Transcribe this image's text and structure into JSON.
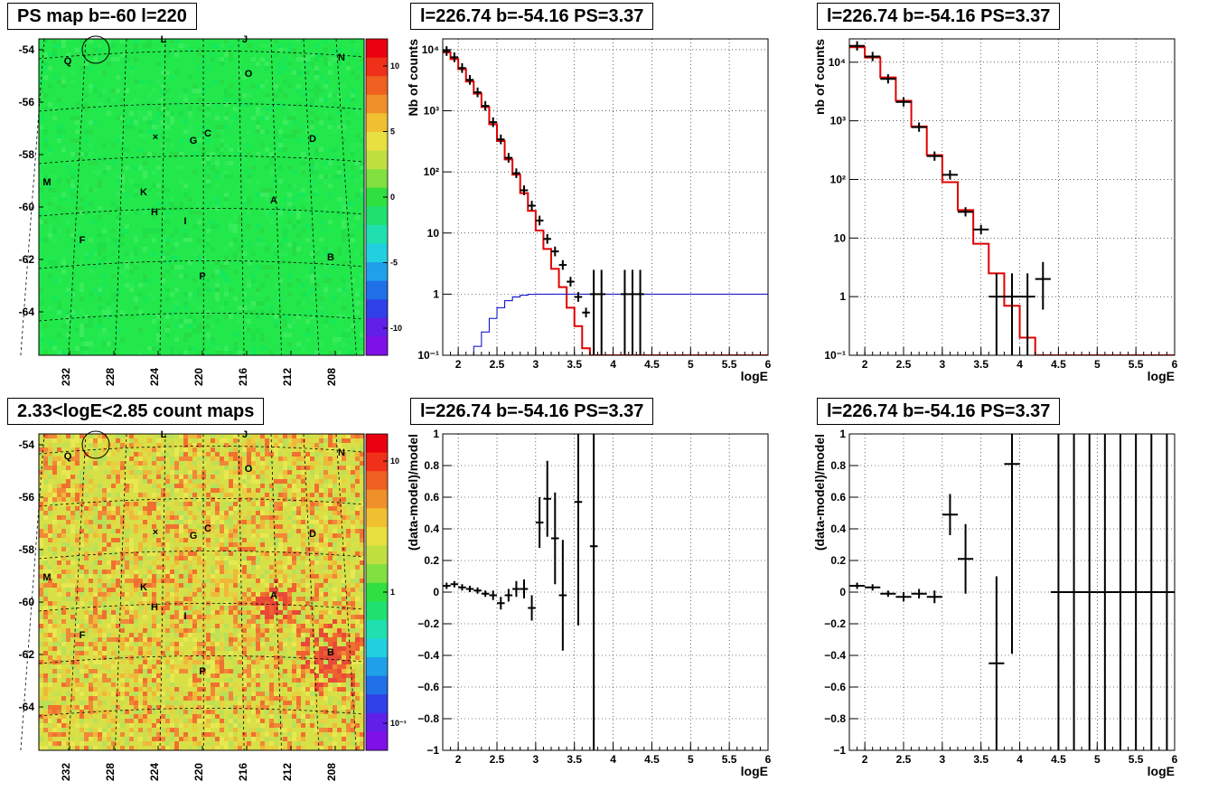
{
  "titles": {
    "map_top": "PS map b=-60 l=220",
    "map_bottom": "2.33<logE<2.85 count maps",
    "spec1": "l=226.74 b=-54.16 PS=3.37",
    "spec2": "l=226.74 b=-54.16 PS=3.37",
    "res1": "l=226.74 b=-54.16 PS=3.37",
    "res2": "l=226.74 b=-54.16 PS=3.37"
  },
  "maps": {
    "lat_ticks": [
      "-54",
      "-56",
      "-58",
      "-60",
      "-62",
      "-64"
    ],
    "lon_ticks": [
      "232",
      "228",
      "224",
      "220",
      "216",
      "212",
      "208"
    ],
    "sources": [
      "L",
      "J",
      "Q",
      "N",
      "O",
      "C",
      "G",
      "D",
      "M",
      "K",
      "A",
      "H",
      "I",
      "F",
      "B",
      "P"
    ],
    "top_palette_ticks": [
      "10",
      "5",
      "0",
      "-5",
      "-10"
    ],
    "bottom_palette_ticks": [
      "10",
      "1",
      "10⁻¹"
    ],
    "colors": {
      "top_background": "#22e84c",
      "bottom_background": "#d8e048",
      "hotspot": "#e84838"
    }
  },
  "chart_data": [
    {
      "type": "line",
      "title": "l=226.74 b=-54.16 PS=3.37",
      "xlabel": "logE",
      "ylabel": "Nb of counts",
      "log_y": true,
      "xlim": [
        1.8,
        6
      ],
      "ylim": [
        0.1,
        15000
      ],
      "x_ticks": [
        "2",
        "2.5",
        "3",
        "3.5",
        "4",
        "4.5",
        "5",
        "5.5",
        "6"
      ],
      "y_ticks": [
        "10⁻¹",
        "1",
        "10",
        "10²",
        "10³",
        "10⁴"
      ],
      "grid": true,
      "series": [
        {
          "style": "step",
          "color": "#e00000",
          "bins": [
            1.8,
            1.9,
            2.0,
            2.1,
            2.2,
            2.3,
            2.4,
            2.5,
            2.6,
            2.7,
            2.8,
            2.9,
            3.0,
            3.1,
            3.2,
            3.3,
            3.4,
            3.5,
            3.6,
            3.7,
            3.8,
            3.9,
            4.0,
            6.0
          ],
          "values": [
            9000,
            7000,
            4800,
            3000,
            1900,
            1150,
            600,
            320,
            160,
            90,
            45,
            23,
            11,
            5.5,
            2.6,
            1.3,
            0.6,
            0.3,
            0.13,
            0.1,
            0.1,
            0.1,
            0.1
          ]
        },
        {
          "style": "step",
          "color": "#0000c8",
          "bins": [
            2.1,
            2.2,
            2.3,
            2.4,
            2.5,
            2.6,
            2.7,
            2.8,
            2.9,
            3.0,
            3.1,
            6.0
          ],
          "values": [
            0.1,
            0.14,
            0.24,
            0.4,
            0.6,
            0.78,
            0.9,
            0.96,
            0.99,
            1.0,
            1.0
          ]
        },
        {
          "style": "errorbar",
          "color": "#000000",
          "x": [
            1.85,
            1.95,
            2.05,
            2.15,
            2.25,
            2.35,
            2.45,
            2.55,
            2.65,
            2.75,
            2.85,
            2.95,
            3.05,
            3.15,
            3.25,
            3.35,
            3.45,
            3.55,
            3.65,
            3.75,
            3.85,
            4.15,
            4.25,
            4.35
          ],
          "values": [
            9500,
            7500,
            5000,
            3200,
            2000,
            1200,
            650,
            340,
            170,
            95,
            50,
            28,
            16,
            8,
            5,
            3,
            1.6,
            0.9,
            0.5,
            1,
            1,
            1,
            1,
            1
          ],
          "err_low": [
            0,
            0,
            0,
            0,
            0,
            0,
            0,
            0,
            0,
            0,
            0,
            0,
            0,
            0,
            0,
            0,
            0,
            0,
            0,
            0.9,
            0.9,
            0.9,
            0.9,
            0.9
          ],
          "err_high": [
            0,
            0,
            0,
            0,
            0,
            0,
            0,
            0,
            0,
            0,
            0,
            0,
            0,
            0,
            0,
            0,
            0,
            0,
            0,
            1.5,
            1.5,
            1.5,
            1.5,
            1.5
          ],
          "x_err": 0.05
        }
      ]
    },
    {
      "type": "line",
      "title": "l=226.74 b=-54.16 PS=3.37",
      "xlabel": "logE",
      "ylabel": "nb of counts",
      "log_y": true,
      "xlim": [
        1.8,
        6
      ],
      "ylim": [
        0.1,
        25000
      ],
      "x_ticks": [
        "2",
        "2.5",
        "3",
        "3.5",
        "4",
        "4.5",
        "5",
        "5.5",
        "6"
      ],
      "y_ticks": [
        "10⁻¹",
        "1",
        "10",
        "10²",
        "10³",
        "10⁴"
      ],
      "grid": true,
      "series": [
        {
          "style": "step",
          "color": "#e00000",
          "bins": [
            1.8,
            2.0,
            2.2,
            2.4,
            2.6,
            2.8,
            3.0,
            3.2,
            3.4,
            3.6,
            3.8,
            4.0,
            4.2,
            6.0
          ],
          "values": [
            18000,
            12000,
            5500,
            2200,
            800,
            260,
            90,
            30,
            8,
            2.5,
            0.7,
            0.2,
            0.1
          ]
        },
        {
          "style": "errorbar",
          "color": "#000000",
          "x": [
            1.9,
            2.1,
            2.3,
            2.5,
            2.7,
            2.9,
            3.1,
            3.3,
            3.5,
            3.7,
            3.9,
            4.1,
            4.3
          ],
          "values": [
            19000,
            12500,
            5200,
            2100,
            780,
            250,
            120,
            28,
            14,
            1,
            1,
            1,
            2
          ],
          "err_low": [
            0,
            0,
            0,
            0,
            0,
            0,
            0,
            0,
            0,
            0.9,
            0.9,
            0.9,
            1.4
          ],
          "err_high": [
            0,
            0,
            0,
            0,
            0,
            0,
            0,
            0,
            0,
            1.5,
            1.5,
            1.5,
            1.9
          ],
          "x_err": 0.1
        }
      ]
    },
    {
      "type": "scatter",
      "title": "l=226.74 b=-54.16 PS=3.37",
      "xlabel": "logE",
      "ylabel": "(data-model)/model",
      "xlim": [
        1.8,
        6
      ],
      "ylim": [
        -1,
        1
      ],
      "x_ticks": [
        "2",
        "2.5",
        "3",
        "3.5",
        "4",
        "4.5",
        "5",
        "5.5",
        "6"
      ],
      "y_ticks": [
        "−1",
        "−0.8",
        "−0.6",
        "−0.4",
        "−0.2",
        "0",
        "0.2",
        "0.4",
        "0.6",
        "0.8",
        "1"
      ],
      "grid": true,
      "series": [
        {
          "style": "errorbar",
          "color": "#000000",
          "x": [
            1.85,
            1.95,
            2.05,
            2.15,
            2.25,
            2.35,
            2.45,
            2.55,
            2.65,
            2.75,
            2.85,
            2.95,
            3.05,
            3.15,
            3.25,
            3.35,
            3.55,
            3.75
          ],
          "values": [
            0.04,
            0.05,
            0.03,
            0.02,
            0.01,
            -0.01,
            -0.02,
            -0.07,
            -0.02,
            0.02,
            0.02,
            -0.1,
            0.44,
            0.59,
            0.34,
            -0.02,
            0.57,
            0.29
          ],
          "err": [
            0.02,
            0.02,
            0.02,
            0.02,
            0.02,
            0.02,
            0.03,
            0.04,
            0.04,
            0.05,
            0.06,
            0.08,
            0.16,
            0.24,
            0.29,
            0.35,
            0.78,
            1.3
          ],
          "x_err": 0.05
        }
      ]
    },
    {
      "type": "scatter",
      "title": "l=226.74 b=-54.16 PS=3.37",
      "xlabel": "logE",
      "ylabel": "(data-model)/model",
      "xlim": [
        1.8,
        6
      ],
      "ylim": [
        -1,
        1
      ],
      "x_ticks": [
        "2",
        "2.5",
        "3",
        "3.5",
        "4",
        "4.5",
        "5",
        "5.5",
        "6"
      ],
      "y_ticks": [
        "−1",
        "−0.8",
        "−0.6",
        "−0.4",
        "−0.2",
        "0",
        "0.2",
        "0.4",
        "0.6",
        "0.8",
        "1"
      ],
      "grid": true,
      "series": [
        {
          "style": "errorbar",
          "color": "#000000",
          "x": [
            1.9,
            2.1,
            2.3,
            2.5,
            2.7,
            2.9,
            3.1,
            3.3,
            3.7,
            3.9,
            4.5,
            4.7,
            4.9,
            5.1,
            5.3,
            5.5,
            5.7,
            5.9
          ],
          "values": [
            0.04,
            0.03,
            -0.01,
            -0.03,
            -0.01,
            -0.03,
            0.49,
            0.21,
            -0.45,
            0.81,
            0,
            0,
            0,
            0,
            0,
            0,
            0,
            0
          ],
          "err": [
            0.02,
            0.02,
            0.02,
            0.03,
            0.03,
            0.04,
            0.13,
            0.22,
            0.55,
            1.2,
            2.5,
            2.5,
            2.5,
            2.5,
            2.5,
            2.5,
            2.5,
            2.5
          ],
          "x_err": 0.1
        }
      ]
    }
  ]
}
